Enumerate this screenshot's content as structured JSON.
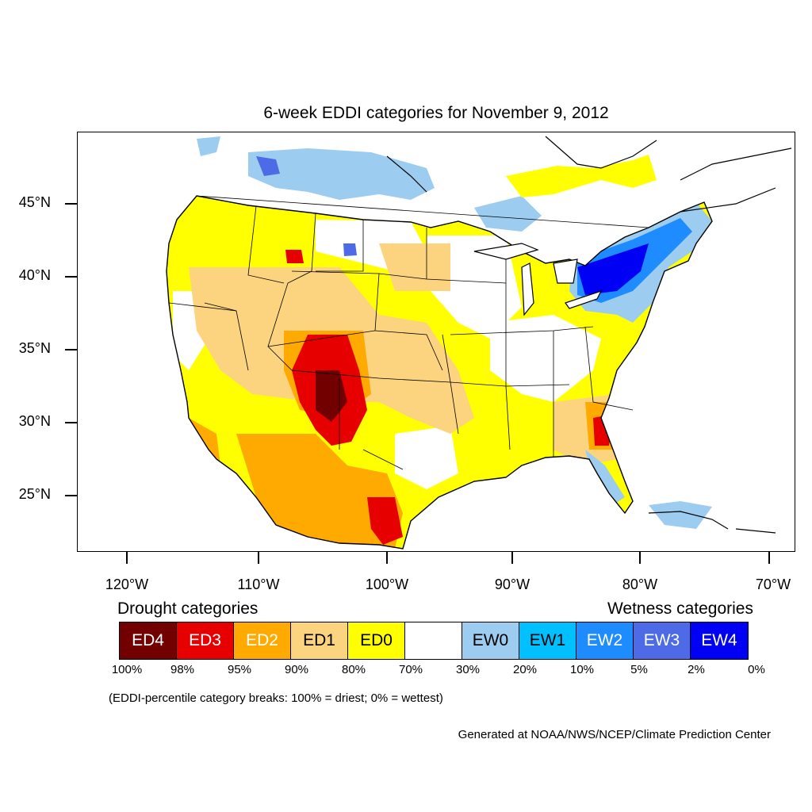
{
  "title": "6-week EDDI categories for November 9, 2012",
  "map": {
    "lat_labels": [
      "45°N",
      "40°N",
      "35°N",
      "30°N",
      "25°N"
    ],
    "lon_labels": [
      "120°W",
      "110°W",
      "100°W",
      "90°W",
      "80°W",
      "70°W"
    ],
    "colors": {
      "ED4": "#730000",
      "ED3": "#e60000",
      "ED2": "#ffaa00",
      "ED1": "#fcd37f",
      "ED0": "#ffff00",
      "neutral": "#ffffff",
      "EW0": "#9ccdf0",
      "EW1": "#00c0ff",
      "EW2": "#1e8cff",
      "EW3": "#4d6be6",
      "EW4": "#0000f5"
    }
  },
  "legend": {
    "drought_heading": "Drought categories",
    "wetness_heading": "Wetness categories",
    "categories": [
      {
        "label": "ED4",
        "color": "#730000",
        "text_color": "#ffffff"
      },
      {
        "label": "ED3",
        "color": "#e60000",
        "text_color": "#ffffff"
      },
      {
        "label": "ED2",
        "color": "#ffaa00",
        "text_color": "#ffffff"
      },
      {
        "label": "ED1",
        "color": "#fcd37f",
        "text_color": "#000000"
      },
      {
        "label": "ED0",
        "color": "#ffff00",
        "text_color": "#000000"
      },
      {
        "label": "",
        "color": "#ffffff",
        "text_color": "#000000"
      },
      {
        "label": "EW0",
        "color": "#9ccdf0",
        "text_color": "#000000"
      },
      {
        "label": "EW1",
        "color": "#00c0ff",
        "text_color": "#000000"
      },
      {
        "label": "EW2",
        "color": "#1e8cff",
        "text_color": "#ffffff"
      },
      {
        "label": "EW3",
        "color": "#4d6be6",
        "text_color": "#ffffff"
      },
      {
        "label": "EW4",
        "color": "#0000f5",
        "text_color": "#ffffff"
      }
    ],
    "percentiles": [
      "100%",
      "98%",
      "95%",
      "90%",
      "80%",
      "70%",
      "30%",
      "20%",
      "10%",
      "5%",
      "2%",
      "0%"
    ]
  },
  "breaks_note": "(EDDI-percentile category breaks: 100% = driest; 0% = wettest)",
  "credit": "Generated at NOAA/NWS/NCEP/Climate Prediction Center"
}
